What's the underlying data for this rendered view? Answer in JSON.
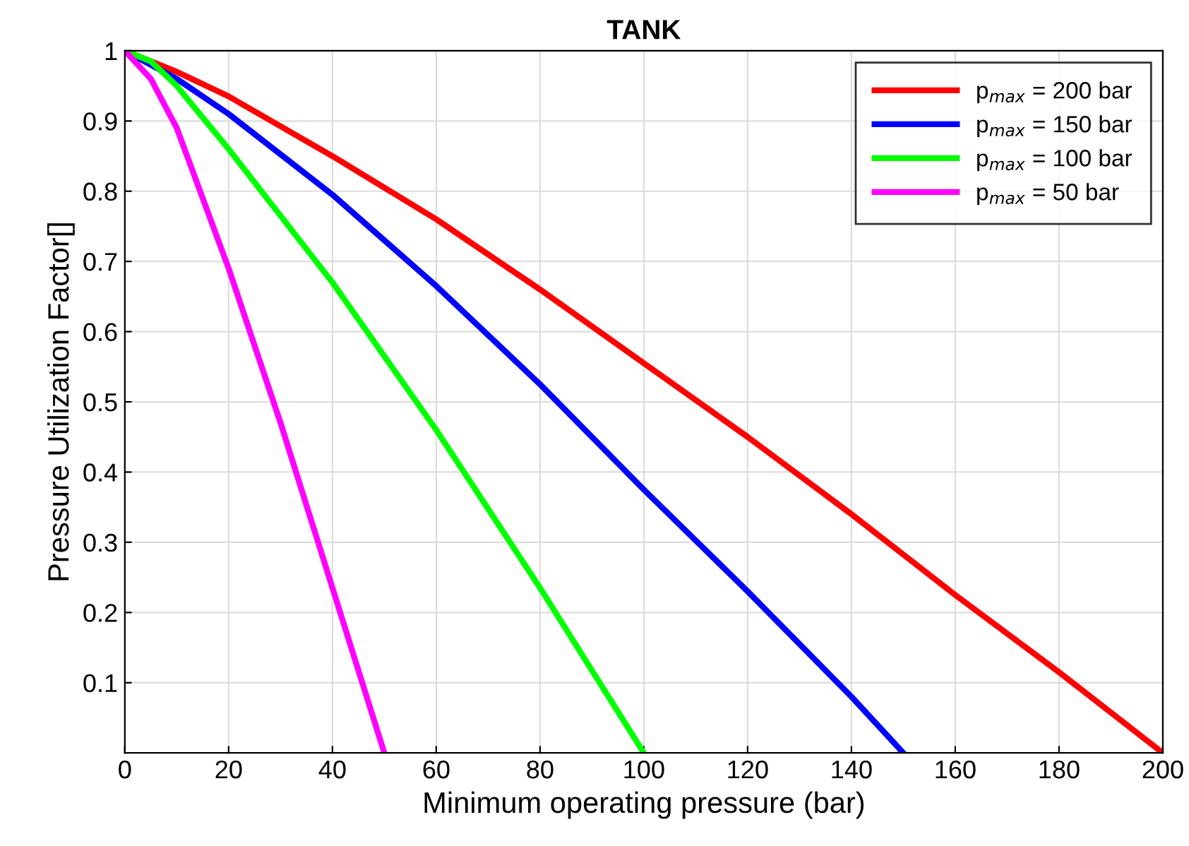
{
  "chart_data": {
    "type": "line",
    "title": "TANK",
    "xlabel": "Minimum operating pressure (bar)",
    "ylabel": "Pressure Utilization Factor[]",
    "xlim": [
      0,
      200
    ],
    "xticks": [
      0,
      20,
      40,
      60,
      80,
      100,
      120,
      140,
      160,
      180,
      200
    ],
    "ylim": [
      0,
      1
    ],
    "yticks": [
      0.1,
      0.2,
      0.3,
      0.4,
      0.5,
      0.6,
      0.7,
      0.8,
      0.9,
      1
    ],
    "grid": true,
    "legend": "top right",
    "marker": "none",
    "line_style": "solid",
    "series": [
      {
        "name": "p$_{max}$ = 200 bar",
        "color": "#ff0000",
        "x": [
          0,
          10,
          20,
          40,
          60,
          80,
          100,
          120,
          140,
          160,
          180,
          200
        ],
        "values": [
          1,
          0.97,
          0.935,
          0.85,
          0.76,
          0.66,
          0.555,
          0.45,
          0.34,
          0.225,
          0.115,
          0
        ]
      },
      {
        "name": "p$_{max}$ = 150 bar",
        "color": "#0000ff",
        "x": [
          0,
          10,
          20,
          40,
          60,
          80,
          100,
          120,
          140,
          150
        ],
        "values": [
          1,
          0.96,
          0.91,
          0.795,
          0.665,
          0.525,
          0.375,
          0.23,
          0.08,
          0
        ]
      },
      {
        "name": "p$_{max}$ = 100 bar",
        "color": "#00ff00",
        "x": [
          0,
          5,
          10,
          20,
          40,
          60,
          80,
          100
        ],
        "values": [
          1,
          0.985,
          0.95,
          0.86,
          0.67,
          0.46,
          0.235,
          0
        ]
      },
      {
        "name": "p$_{max}$ = 50 bar",
        "color": "#ff00ff",
        "x": [
          0,
          5,
          10,
          20,
          30,
          40,
          50
        ],
        "values": [
          1,
          0.96,
          0.89,
          0.69,
          0.47,
          0.235,
          0
        ]
      }
    ]
  }
}
